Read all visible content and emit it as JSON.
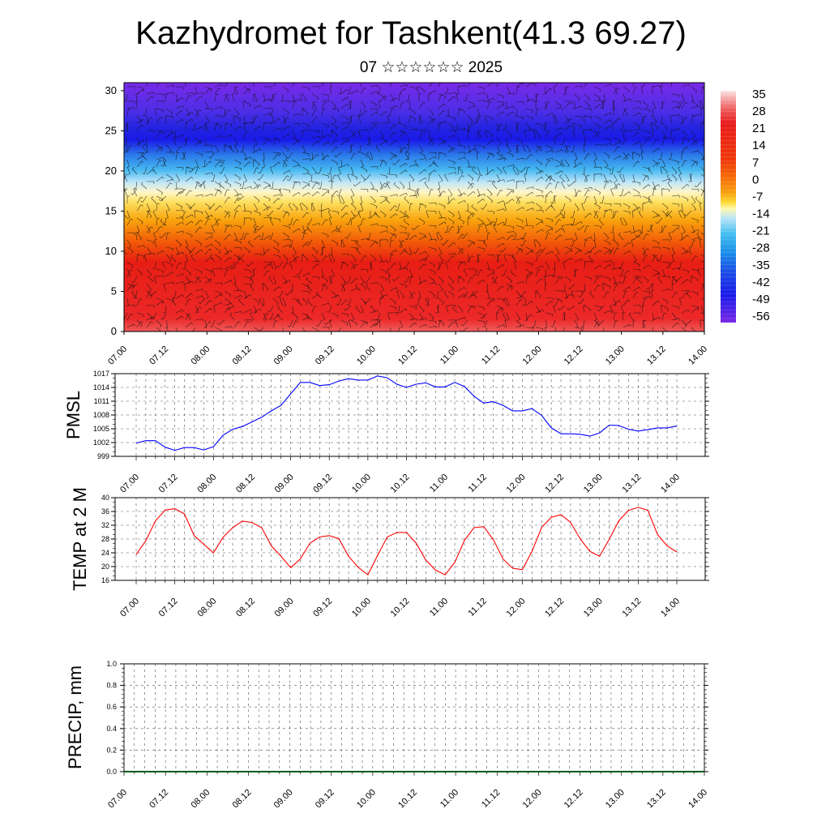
{
  "title": "Kazhydromet for Tashkent(41.3 69.27)",
  "subtitle": "07 ☆☆☆☆☆☆ 2025",
  "chart_data": [
    {
      "type": "heatmap",
      "name": "temperature-height-section",
      "x_ticks": [
        "07.00",
        "07.12",
        "08.00",
        "08.12",
        "09.00",
        "09.12",
        "10.00",
        "10.12",
        "11.00",
        "11.12",
        "12.00",
        "12.12",
        "13.00",
        "13.12",
        "14.00"
      ],
      "y_ticks": [
        0,
        5,
        10,
        15,
        20,
        25,
        30
      ],
      "ylim": [
        0,
        31
      ],
      "colorbar": {
        "labels": [
          "35",
          "28",
          "21",
          "14",
          "7",
          "0",
          "-7",
          "-14",
          "-21",
          "-28",
          "-35",
          "-42",
          "-49",
          "-56"
        ],
        "colors": [
          "#fbe3e3",
          "#ef6a6a",
          "#e81b1b",
          "#f03a0a",
          "#f56a08",
          "#f9a010",
          "#fbd830",
          "#fff8b0",
          "#b8e4f8",
          "#40bdf0",
          "#1a8ce8",
          "#1c4fe6",
          "#1a1ae8",
          "#7a2ae8"
        ]
      },
      "overlay": "wind barbs"
    },
    {
      "type": "line",
      "ylabel": "PMSL",
      "ylim": [
        999,
        1017
      ],
      "y_ticks": [
        999,
        1002,
        1005,
        1008,
        1011,
        1014,
        1017
      ],
      "x_ticks": [
        "07.00",
        "07.12",
        "08.00",
        "08.12",
        "09.00",
        "09.12",
        "10.00",
        "10.12",
        "11.00",
        "11.12",
        "12.00",
        "12.12",
        "13.00",
        "13.12",
        "14.00"
      ],
      "color": "#0000ff",
      "x_step_hours": 3,
      "values": [
        1001.9,
        1002.4,
        1002.4,
        1001,
        1000.3,
        1000.9,
        1000.9,
        1000.4,
        1001.1,
        1003.6,
        1004.9,
        1005.5,
        1006.5,
        1007.5,
        1008.9,
        1010.1,
        1012.6,
        1015.1,
        1015.1,
        1014.4,
        1014.6,
        1015.4,
        1015.9,
        1015.6,
        1015.6,
        1016.5,
        1016.1,
        1014.7,
        1014.0,
        1014.7,
        1015.0,
        1014.1,
        1014.1,
        1015.1,
        1014.2,
        1012.1,
        1010.6,
        1010.9,
        1010.1,
        1008.9,
        1008.9,
        1009.4,
        1007.9,
        1005.2,
        1003.9,
        1003.9,
        1003.8,
        1003.4,
        1004.1,
        1005.8,
        1005.7,
        1004.9,
        1004.5,
        1004.8,
        1005.2,
        1005.2,
        1005.6
      ]
    },
    {
      "type": "line",
      "ylabel": "TEMP at 2 M",
      "ylim": [
        16,
        40
      ],
      "y_ticks": [
        16,
        20,
        24,
        28,
        32,
        36,
        40
      ],
      "x_ticks": [
        "07.00",
        "07.12",
        "08.00",
        "08.12",
        "09.00",
        "09.12",
        "10.00",
        "10.12",
        "11.00",
        "11.12",
        "12.00",
        "12.12",
        "13.00",
        "13.12",
        "14.00"
      ],
      "color": "#ff0000",
      "x_step_hours": 3,
      "values": [
        23.5,
        27.5,
        33.3,
        36.4,
        36.8,
        35.3,
        29,
        26.5,
        24,
        28.5,
        31.3,
        33.2,
        32.8,
        31.3,
        26,
        23,
        19.7,
        22.2,
        26.8,
        28.6,
        29,
        28.1,
        23,
        19.8,
        17.6,
        23.2,
        28.6,
        29.9,
        29.9,
        26.8,
        21.9,
        19,
        17.6,
        21.2,
        27.6,
        31.3,
        31.6,
        27.8,
        22.2,
        19.5,
        19.1,
        24.4,
        31.4,
        34.3,
        35.1,
        32.8,
        28,
        24.4,
        23,
        27.9,
        33.3,
        36.3,
        37.2,
        36.3,
        29.3,
        26,
        24.2
      ]
    },
    {
      "type": "bar",
      "ylabel": "PRECIP, mm",
      "ylim": [
        0,
        1
      ],
      "y_ticks": [
        "0.0",
        "0.2",
        "0.4",
        "0.6",
        "0.8",
        "1.0"
      ],
      "x_ticks": [
        "07.00",
        "07.12",
        "08.00",
        "08.12",
        "09.00",
        "09.12",
        "10.00",
        "10.12",
        "11.00",
        "11.12",
        "12.00",
        "12.12",
        "13.00",
        "13.12",
        "14.00"
      ],
      "values": []
    }
  ]
}
